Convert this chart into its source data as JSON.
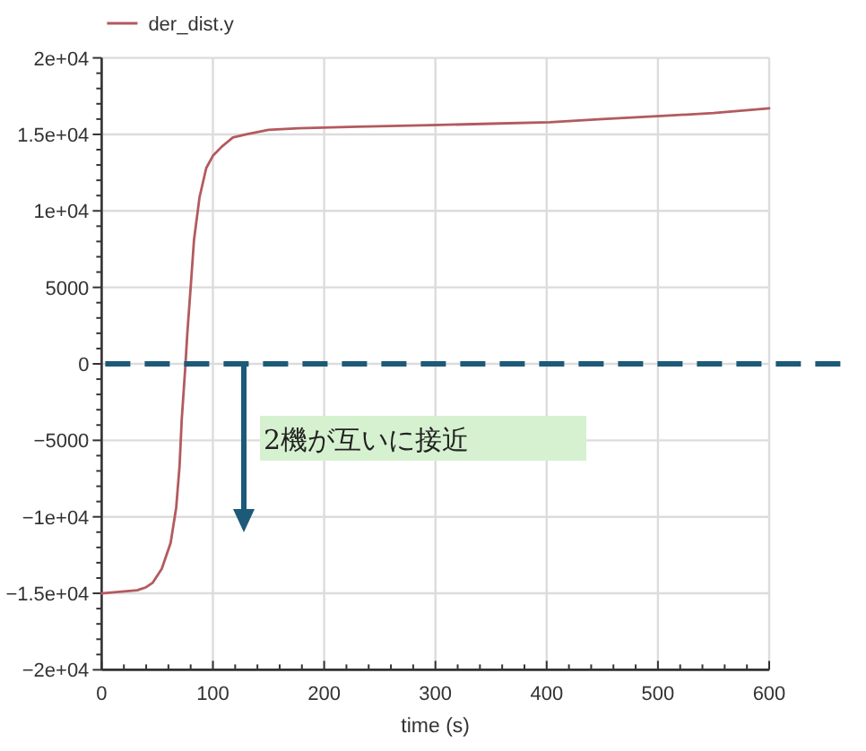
{
  "chart_data": {
    "type": "line",
    "xlabel": "time (s)",
    "annotations": [
      "2機が互いに接近"
    ],
    "x": [
      0,
      16,
      32,
      40,
      46,
      54,
      62,
      67,
      70,
      72,
      75,
      77,
      80,
      83,
      88,
      94,
      100,
      108,
      118,
      130,
      150,
      177,
      230,
      296,
      350,
      403,
      450,
      503,
      550,
      600
    ],
    "series": [
      {
        "name": "der_dist.y",
        "color": "#b35a5f",
        "values": [
          -15000,
          -14900,
          -14800,
          -14600,
          -14300,
          -13400,
          -11700,
          -9400,
          -6700,
          -3600,
          -400,
          2000,
          5000,
          8100,
          10900,
          12800,
          13600,
          14200,
          14800,
          15000,
          15300,
          15400,
          15500,
          15600,
          15700,
          15800,
          16000,
          16200,
          16400,
          16700
        ]
      }
    ],
    "xlim": [
      0,
      600
    ],
    "xticks": [
      0,
      100,
      200,
      300,
      400,
      500,
      600
    ],
    "ylim": [
      -20000,
      20000
    ],
    "yticks": [
      {
        "value": -20000,
        "label": "−2e+04"
      },
      {
        "value": -15000,
        "label": "−1.5e+04"
      },
      {
        "value": -10000,
        "label": "−1e+04"
      },
      {
        "value": -5000,
        "label": "−5000"
      },
      0,
      5000,
      {
        "value": 10000,
        "label": "1e+04"
      },
      {
        "value": 15000,
        "label": "1.5e+04"
      },
      {
        "value": 20000,
        "label": "2e+04"
      }
    ],
    "grid": true,
    "legend": "top left",
    "ref_lines": [
      {
        "axis": "y",
        "value": 0,
        "color": "#1d5a78",
        "line_style": "dashed"
      }
    ]
  }
}
